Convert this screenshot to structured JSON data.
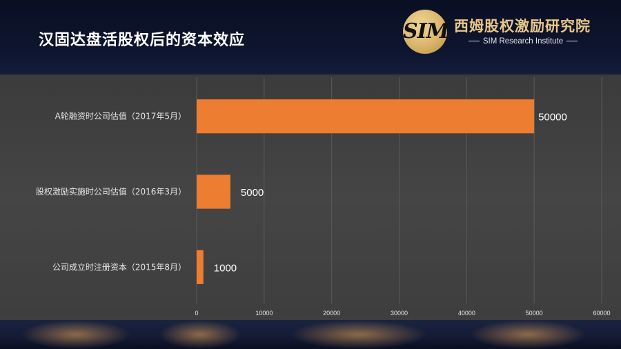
{
  "slide": {
    "title": "汉固达盘活股权后的资本效应"
  },
  "logo": {
    "mark": "SIM",
    "name": "西姆股权激励研究院",
    "subtitle": "SIM Research Institute"
  },
  "colors": {
    "bar": "#ed7d31",
    "grid": "#5a5a5a",
    "text": "#e6e6e6",
    "title": "#ffffff",
    "logo_gold": "#e8c889"
  },
  "chart_data": {
    "type": "bar",
    "orientation": "horizontal",
    "categories": [
      "A轮融资时公司估值（2017年5月）",
      "股权激励实施时公司估值（2016年3月）",
      "公司成立时注册资本（2015年8月）"
    ],
    "values": [
      50000,
      5000,
      1000
    ],
    "data_labels": [
      "50000",
      "5000",
      "1000"
    ],
    "xlim": [
      0,
      60000
    ],
    "xticks": [
      0,
      10000,
      20000,
      30000,
      40000,
      50000,
      60000
    ],
    "xtick_labels": [
      "0",
      "10000",
      "20000",
      "30000",
      "40000",
      "50000",
      "60000"
    ],
    "grid": true,
    "legend": "none",
    "title": "",
    "xlabel": "",
    "ylabel": ""
  }
}
